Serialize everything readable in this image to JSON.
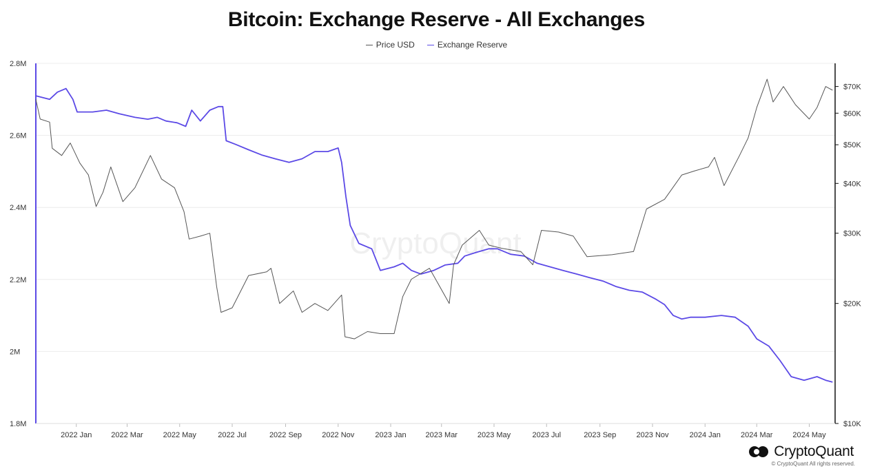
{
  "title": "Bitcoin: Exchange Reserve - All Exchanges",
  "legend": [
    {
      "label": "Price USD",
      "color": "#555555"
    },
    {
      "label": "Exchange Reserve",
      "color": "#5b49e6"
    }
  ],
  "watermark": "CryptoQuant",
  "brand": {
    "name": "CryptoQuant",
    "copyright": "© CryptoQuant All rights reserved.",
    "icon": "cryptoquant-logo-icon"
  },
  "chart_data": {
    "type": "line",
    "title": "Bitcoin: Exchange Reserve - All Exchanges",
    "x_start": "2021-11-15",
    "x_end": "2024-05-31",
    "x_ticks": [
      "2022 Jan",
      "2022 Mar",
      "2022 May",
      "2022 Jul",
      "2022 Sep",
      "2022 Nov",
      "2023 Jan",
      "2023 Mar",
      "2023 May",
      "2023 Jul",
      "2023 Sep",
      "2023 Nov",
      "2024 Jan",
      "2024 Mar",
      "2024 May"
    ],
    "x_tick_dates": [
      "2022-01-01",
      "2022-03-01",
      "2022-05-01",
      "2022-07-01",
      "2022-09-01",
      "2022-11-01",
      "2023-01-01",
      "2023-03-01",
      "2023-05-01",
      "2023-07-01",
      "2023-09-01",
      "2023-11-01",
      "2024-01-01",
      "2024-03-01",
      "2024-05-01"
    ],
    "left_axis": {
      "min": 1800000,
      "max": 2800000,
      "ticks": [
        1800000,
        2000000,
        2200000,
        2400000,
        2600000,
        2800000
      ],
      "tick_labels": [
        "1.8M",
        "2M",
        "2.2M",
        "2.4M",
        "2.6M",
        "2.8M"
      ]
    },
    "right_axis": {
      "scale": "log",
      "min": 10000,
      "max": 80000,
      "ticks": [
        10000,
        20000,
        30000,
        40000,
        50000,
        60000,
        70000
      ],
      "tick_labels": [
        "$10K",
        "$20K",
        "$30K",
        "$40K",
        "$50K",
        "$60K",
        "$70K"
      ]
    },
    "grid": true,
    "legend_position": "top-center",
    "series": [
      {
        "name": "Exchange Reserve",
        "axis": "left",
        "color": "#5b49e6",
        "points": [
          [
            "2021-11-15",
            2710000
          ],
          [
            "2021-12-01",
            2700000
          ],
          [
            "2021-12-10",
            2720000
          ],
          [
            "2021-12-20",
            2730000
          ],
          [
            "2021-12-28",
            2700000
          ],
          [
            "2022-01-02",
            2665000
          ],
          [
            "2022-01-20",
            2665000
          ],
          [
            "2022-02-05",
            2670000
          ],
          [
            "2022-02-20",
            2660000
          ],
          [
            "2022-03-10",
            2650000
          ],
          [
            "2022-03-25",
            2645000
          ],
          [
            "2022-04-05",
            2650000
          ],
          [
            "2022-04-15",
            2640000
          ],
          [
            "2022-04-28",
            2635000
          ],
          [
            "2022-05-08",
            2625000
          ],
          [
            "2022-05-15",
            2670000
          ],
          [
            "2022-05-25",
            2640000
          ],
          [
            "2022-06-05",
            2670000
          ],
          [
            "2022-06-15",
            2680000
          ],
          [
            "2022-06-20",
            2680000
          ],
          [
            "2022-06-24",
            2585000
          ],
          [
            "2022-07-05",
            2575000
          ],
          [
            "2022-07-20",
            2560000
          ],
          [
            "2022-08-05",
            2545000
          ],
          [
            "2022-08-20",
            2535000
          ],
          [
            "2022-09-05",
            2525000
          ],
          [
            "2022-09-20",
            2535000
          ],
          [
            "2022-10-05",
            2555000
          ],
          [
            "2022-10-20",
            2555000
          ],
          [
            "2022-11-01",
            2565000
          ],
          [
            "2022-11-05",
            2525000
          ],
          [
            "2022-11-10",
            2430000
          ],
          [
            "2022-11-15",
            2350000
          ],
          [
            "2022-11-25",
            2300000
          ],
          [
            "2022-12-10",
            2285000
          ],
          [
            "2022-12-20",
            2225000
          ],
          [
            "2023-01-05",
            2235000
          ],
          [
            "2023-01-15",
            2245000
          ],
          [
            "2023-01-25",
            2225000
          ],
          [
            "2023-02-05",
            2215000
          ],
          [
            "2023-02-20",
            2225000
          ],
          [
            "2023-03-05",
            2240000
          ],
          [
            "2023-03-20",
            2245000
          ],
          [
            "2023-03-28",
            2265000
          ],
          [
            "2023-04-10",
            2275000
          ],
          [
            "2023-04-25",
            2285000
          ],
          [
            "2023-05-05",
            2285000
          ],
          [
            "2023-05-20",
            2270000
          ],
          [
            "2023-06-05",
            2265000
          ],
          [
            "2023-06-20",
            2245000
          ],
          [
            "2023-07-05",
            2235000
          ],
          [
            "2023-07-20",
            2225000
          ],
          [
            "2023-08-05",
            2215000
          ],
          [
            "2023-08-20",
            2205000
          ],
          [
            "2023-09-05",
            2195000
          ],
          [
            "2023-09-20",
            2180000
          ],
          [
            "2023-10-05",
            2170000
          ],
          [
            "2023-10-20",
            2165000
          ],
          [
            "2023-11-05",
            2145000
          ],
          [
            "2023-11-15",
            2130000
          ],
          [
            "2023-11-25",
            2100000
          ],
          [
            "2023-12-05",
            2090000
          ],
          [
            "2023-12-15",
            2095000
          ],
          [
            "2024-01-01",
            2095000
          ],
          [
            "2024-01-20",
            2100000
          ],
          [
            "2024-02-05",
            2095000
          ],
          [
            "2024-02-20",
            2070000
          ],
          [
            "2024-03-01",
            2035000
          ],
          [
            "2024-03-15",
            2015000
          ],
          [
            "2024-03-28",
            1975000
          ],
          [
            "2024-04-10",
            1930000
          ],
          [
            "2024-04-25",
            1920000
          ],
          [
            "2024-05-10",
            1930000
          ],
          [
            "2024-05-20",
            1920000
          ],
          [
            "2024-05-28",
            1915000
          ]
        ]
      },
      {
        "name": "Price USD",
        "axis": "right",
        "color": "#555555",
        "points": [
          [
            "2021-11-15",
            65000
          ],
          [
            "2021-11-20",
            58000
          ],
          [
            "2021-12-01",
            57000
          ],
          [
            "2021-12-04",
            49000
          ],
          [
            "2021-12-15",
            47000
          ],
          [
            "2021-12-25",
            50500
          ],
          [
            "2022-01-05",
            45000
          ],
          [
            "2022-01-15",
            42000
          ],
          [
            "2022-01-24",
            35000
          ],
          [
            "2022-02-01",
            38000
          ],
          [
            "2022-02-10",
            44000
          ],
          [
            "2022-02-24",
            36000
          ],
          [
            "2022-03-10",
            39000
          ],
          [
            "2022-03-28",
            47000
          ],
          [
            "2022-04-10",
            41000
          ],
          [
            "2022-04-25",
            39000
          ],
          [
            "2022-05-06",
            34000
          ],
          [
            "2022-05-12",
            29000
          ],
          [
            "2022-05-25",
            29500
          ],
          [
            "2022-06-05",
            30000
          ],
          [
            "2022-06-13",
            22000
          ],
          [
            "2022-06-18",
            19000
          ],
          [
            "2022-07-01",
            19500
          ],
          [
            "2022-07-20",
            23500
          ],
          [
            "2022-08-10",
            24000
          ],
          [
            "2022-08-15",
            24500
          ],
          [
            "2022-08-25",
            20000
          ],
          [
            "2022-09-10",
            21500
          ],
          [
            "2022-09-20",
            19000
          ],
          [
            "2022-10-05",
            20000
          ],
          [
            "2022-10-20",
            19200
          ],
          [
            "2022-11-05",
            21000
          ],
          [
            "2022-11-09",
            16500
          ],
          [
            "2022-11-20",
            16300
          ],
          [
            "2022-12-05",
            17000
          ],
          [
            "2022-12-20",
            16800
          ],
          [
            "2023-01-05",
            16800
          ],
          [
            "2023-01-15",
            20800
          ],
          [
            "2023-01-25",
            23000
          ],
          [
            "2023-02-15",
            24500
          ],
          [
            "2023-03-10",
            20000
          ],
          [
            "2023-03-15",
            25000
          ],
          [
            "2023-03-25",
            28000
          ],
          [
            "2023-04-14",
            30500
          ],
          [
            "2023-04-25",
            28000
          ],
          [
            "2023-05-10",
            27500
          ],
          [
            "2023-06-01",
            27000
          ],
          [
            "2023-06-15",
            25000
          ],
          [
            "2023-06-25",
            30500
          ],
          [
            "2023-07-15",
            30200
          ],
          [
            "2023-08-01",
            29500
          ],
          [
            "2023-08-17",
            26200
          ],
          [
            "2023-09-15",
            26500
          ],
          [
            "2023-10-10",
            27000
          ],
          [
            "2023-10-25",
            34500
          ],
          [
            "2023-11-15",
            36500
          ],
          [
            "2023-12-05",
            42000
          ],
          [
            "2023-12-20",
            43000
          ],
          [
            "2024-01-05",
            44000
          ],
          [
            "2024-01-12",
            46500
          ],
          [
            "2024-01-23",
            39500
          ],
          [
            "2024-02-10",
            47000
          ],
          [
            "2024-02-20",
            52000
          ],
          [
            "2024-03-01",
            62000
          ],
          [
            "2024-03-13",
            73000
          ],
          [
            "2024-03-20",
            64000
          ],
          [
            "2024-04-01",
            70000
          ],
          [
            "2024-04-15",
            63000
          ],
          [
            "2024-05-01",
            58000
          ],
          [
            "2024-05-10",
            62000
          ],
          [
            "2024-05-20",
            70000
          ],
          [
            "2024-05-28",
            68500
          ]
        ]
      }
    ]
  }
}
